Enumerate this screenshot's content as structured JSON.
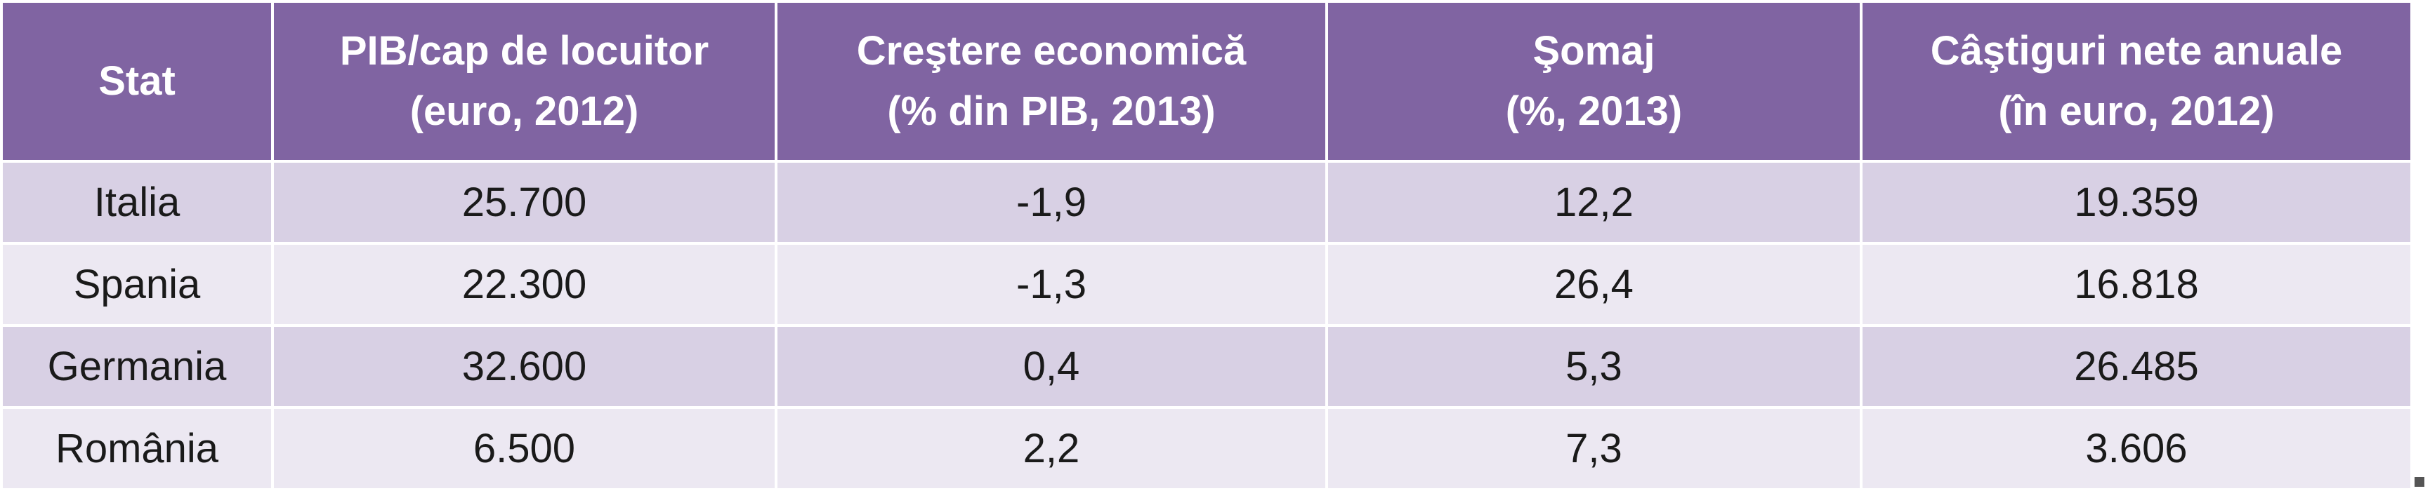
{
  "table": {
    "header": [
      [
        "Stat"
      ],
      [
        "PIB/cap de locuitor",
        "(euro, 2012)"
      ],
      [
        "Creştere economică",
        "(% din PIB, 2013)"
      ],
      [
        "Şomaj",
        "(%, 2013)"
      ],
      [
        "Câştiguri nete anuale",
        "(în euro, 2012)"
      ]
    ],
    "rows": [
      [
        "Italia",
        "25.700",
        "-1,9",
        "12,2",
        "19.359"
      ],
      [
        "Spania",
        "22.300",
        "-1,3",
        "26,4",
        "16.818"
      ],
      [
        "Germania",
        "32.600",
        "0,4",
        "5,3",
        "26.485"
      ],
      [
        "România",
        "6.500",
        "2,2",
        "7,3",
        "3.606"
      ]
    ]
  }
}
